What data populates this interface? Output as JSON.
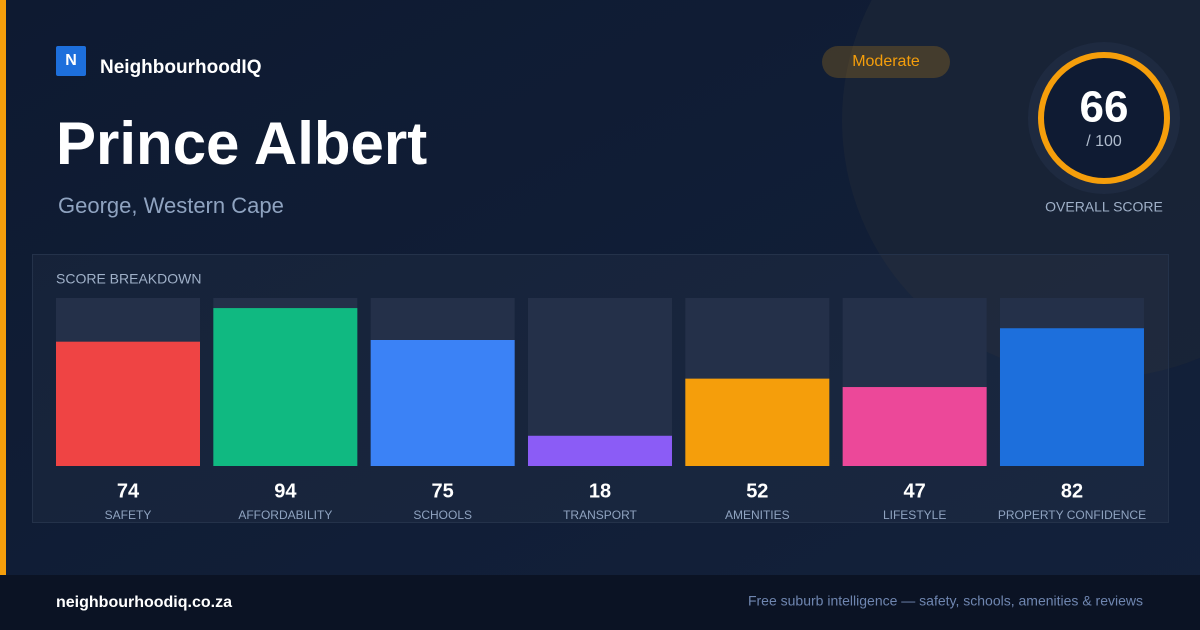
{
  "header": {
    "logo_letter": "N",
    "brand": "NeighbourhoodIQ",
    "title": "Prince Albert",
    "subtitle": "George, Western Cape",
    "badge": "Moderate"
  },
  "score": {
    "value": "66",
    "max_label": "/ 100",
    "label": "OVERALL SCORE"
  },
  "chart_data": {
    "type": "bar",
    "title": "SCORE BREAKDOWN",
    "categories": [
      "SAFETY",
      "AFFORDABILITY",
      "SCHOOLS",
      "TRANSPORT",
      "AMENITIES",
      "LIFESTYLE",
      "PROPERTY CONFIDENCE"
    ],
    "values": [
      74,
      94,
      75,
      18,
      52,
      47,
      82
    ],
    "colors": [
      "#ef4444",
      "#10b981",
      "#3b82f6",
      "#8b5cf6",
      "#f59e0b",
      "#ec4899",
      "#1d6fdc"
    ],
    "ylim": [
      0,
      100
    ],
    "grid": false
  },
  "footer": {
    "site": "neighbourhoodiq.co.za",
    "tagline": "Free suburb intelligence — safety, schools, amenities & reviews"
  }
}
